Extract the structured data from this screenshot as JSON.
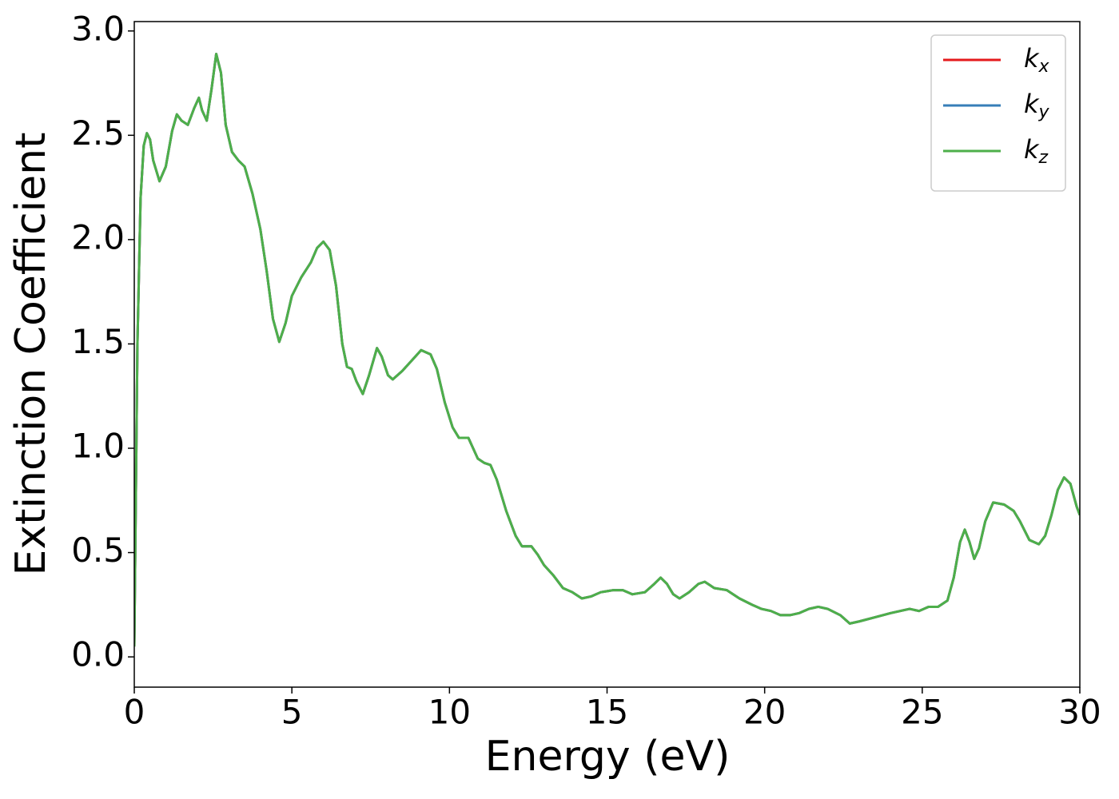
{
  "chart_data": {
    "type": "line",
    "xlabel": "Energy (eV)",
    "ylabel": "Extinction Coefficient",
    "xlim": [
      0,
      30
    ],
    "ylim": [
      -0.145,
      3.045
    ],
    "xticks": [
      0,
      5,
      10,
      15,
      20,
      25,
      30
    ],
    "yticks": [
      {
        "value": 0,
        "label": "0.0"
      },
      0.5,
      {
        "value": 1,
        "label": "1.0"
      },
      1.5,
      {
        "value": 2,
        "label": "2.0"
      },
      2.5,
      {
        "value": 3,
        "label": "3.0"
      }
    ],
    "legend": "upper right",
    "x": [
      0,
      0.1,
      0.2,
      0.3,
      0.4,
      0.5,
      0.6,
      0.8,
      1.0,
      1.2,
      1.35,
      1.5,
      1.7,
      1.9,
      2.05,
      2.15,
      2.3,
      2.45,
      2.6,
      2.75,
      2.9,
      3.1,
      3.3,
      3.5,
      3.75,
      4.0,
      4.2,
      4.4,
      4.6,
      4.8,
      5.0,
      5.3,
      5.6,
      5.8,
      6.0,
      6.2,
      6.4,
      6.6,
      6.75,
      6.9,
      7.05,
      7.25,
      7.45,
      7.7,
      7.85,
      8.05,
      8.2,
      8.5,
      8.8,
      9.1,
      9.4,
      9.6,
      9.85,
      10.1,
      10.3,
      10.6,
      10.9,
      11.1,
      11.3,
      11.5,
      11.8,
      12.1,
      12.3,
      12.6,
      12.8,
      13.0,
      13.3,
      13.6,
      13.9,
      14.2,
      14.5,
      14.8,
      15.2,
      15.5,
      15.8,
      16.2,
      16.5,
      16.7,
      16.9,
      17.1,
      17.3,
      17.6,
      17.9,
      18.1,
      18.4,
      18.8,
      19.2,
      19.6,
      19.9,
      20.2,
      20.5,
      20.8,
      21.1,
      21.4,
      21.7,
      22.0,
      22.4,
      22.7,
      23.0,
      23.5,
      24.0,
      24.3,
      24.6,
      24.9,
      25.2,
      25.5,
      25.8,
      26.0,
      26.2,
      26.35,
      26.5,
      26.65,
      26.8,
      27.0,
      27.25,
      27.6,
      27.9,
      28.1,
      28.4,
      28.7,
      28.9,
      29.1,
      29.3,
      29.5,
      29.7,
      29.9,
      30.0
    ],
    "series": [
      {
        "name": "kx",
        "color": "#e41a1c",
        "values": [
          0.05,
          1.5,
          2.2,
          2.45,
          2.51,
          2.48,
          2.38,
          2.28,
          2.35,
          2.52,
          2.6,
          2.57,
          2.55,
          2.63,
          2.68,
          2.62,
          2.57,
          2.72,
          2.89,
          2.8,
          2.55,
          2.42,
          2.38,
          2.35,
          2.22,
          2.05,
          1.85,
          1.62,
          1.51,
          1.6,
          1.73,
          1.82,
          1.89,
          1.96,
          1.99,
          1.95,
          1.78,
          1.5,
          1.39,
          1.38,
          1.32,
          1.26,
          1.35,
          1.48,
          1.44,
          1.35,
          1.33,
          1.37,
          1.42,
          1.47,
          1.45,
          1.38,
          1.22,
          1.1,
          1.05,
          1.05,
          0.95,
          0.93,
          0.92,
          0.85,
          0.7,
          0.58,
          0.53,
          0.53,
          0.49,
          0.44,
          0.39,
          0.33,
          0.31,
          0.28,
          0.29,
          0.31,
          0.32,
          0.32,
          0.3,
          0.31,
          0.35,
          0.38,
          0.35,
          0.3,
          0.28,
          0.31,
          0.35,
          0.36,
          0.33,
          0.32,
          0.28,
          0.25,
          0.23,
          0.22,
          0.2,
          0.2,
          0.21,
          0.23,
          0.24,
          0.23,
          0.2,
          0.16,
          0.17,
          0.19,
          0.21,
          0.22,
          0.23,
          0.22,
          0.24,
          0.24,
          0.27,
          0.38,
          0.55,
          0.61,
          0.55,
          0.47,
          0.52,
          0.65,
          0.74,
          0.73,
          0.7,
          0.65,
          0.56,
          0.54,
          0.58,
          0.68,
          0.8,
          0.86,
          0.83,
          0.72,
          0.68
        ]
      },
      {
        "name": "ky",
        "color": "#377eb8",
        "values": [
          0.05,
          1.5,
          2.2,
          2.45,
          2.51,
          2.48,
          2.38,
          2.28,
          2.35,
          2.52,
          2.6,
          2.57,
          2.55,
          2.63,
          2.68,
          2.62,
          2.57,
          2.72,
          2.89,
          2.8,
          2.55,
          2.42,
          2.38,
          2.35,
          2.22,
          2.05,
          1.85,
          1.62,
          1.51,
          1.6,
          1.73,
          1.82,
          1.89,
          1.96,
          1.99,
          1.95,
          1.78,
          1.5,
          1.39,
          1.38,
          1.32,
          1.26,
          1.35,
          1.48,
          1.44,
          1.35,
          1.33,
          1.37,
          1.42,
          1.47,
          1.45,
          1.38,
          1.22,
          1.1,
          1.05,
          1.05,
          0.95,
          0.93,
          0.92,
          0.85,
          0.7,
          0.58,
          0.53,
          0.53,
          0.49,
          0.44,
          0.39,
          0.33,
          0.31,
          0.28,
          0.29,
          0.31,
          0.32,
          0.32,
          0.3,
          0.31,
          0.35,
          0.38,
          0.35,
          0.3,
          0.28,
          0.31,
          0.35,
          0.36,
          0.33,
          0.32,
          0.28,
          0.25,
          0.23,
          0.22,
          0.2,
          0.2,
          0.21,
          0.23,
          0.24,
          0.23,
          0.2,
          0.16,
          0.17,
          0.19,
          0.21,
          0.22,
          0.23,
          0.22,
          0.24,
          0.24,
          0.27,
          0.38,
          0.55,
          0.61,
          0.55,
          0.47,
          0.52,
          0.65,
          0.74,
          0.73,
          0.7,
          0.65,
          0.56,
          0.54,
          0.58,
          0.68,
          0.8,
          0.86,
          0.83,
          0.72,
          0.68
        ]
      },
      {
        "name": "kz",
        "color": "#4daf4a",
        "values": [
          0.05,
          1.5,
          2.2,
          2.45,
          2.51,
          2.48,
          2.38,
          2.28,
          2.35,
          2.52,
          2.6,
          2.57,
          2.55,
          2.63,
          2.68,
          2.62,
          2.57,
          2.72,
          2.89,
          2.8,
          2.55,
          2.42,
          2.38,
          2.35,
          2.22,
          2.05,
          1.85,
          1.62,
          1.51,
          1.6,
          1.73,
          1.82,
          1.89,
          1.96,
          1.99,
          1.95,
          1.78,
          1.5,
          1.39,
          1.38,
          1.32,
          1.26,
          1.35,
          1.48,
          1.44,
          1.35,
          1.33,
          1.37,
          1.42,
          1.47,
          1.45,
          1.38,
          1.22,
          1.1,
          1.05,
          1.05,
          0.95,
          0.93,
          0.92,
          0.85,
          0.7,
          0.58,
          0.53,
          0.53,
          0.49,
          0.44,
          0.39,
          0.33,
          0.31,
          0.28,
          0.29,
          0.31,
          0.32,
          0.32,
          0.3,
          0.31,
          0.35,
          0.38,
          0.35,
          0.3,
          0.28,
          0.31,
          0.35,
          0.36,
          0.33,
          0.32,
          0.28,
          0.25,
          0.23,
          0.22,
          0.2,
          0.2,
          0.21,
          0.23,
          0.24,
          0.23,
          0.2,
          0.16,
          0.17,
          0.19,
          0.21,
          0.22,
          0.23,
          0.22,
          0.24,
          0.24,
          0.27,
          0.38,
          0.55,
          0.61,
          0.55,
          0.47,
          0.52,
          0.65,
          0.74,
          0.73,
          0.7,
          0.65,
          0.56,
          0.54,
          0.58,
          0.68,
          0.8,
          0.86,
          0.83,
          0.72,
          0.68
        ]
      }
    ]
  }
}
